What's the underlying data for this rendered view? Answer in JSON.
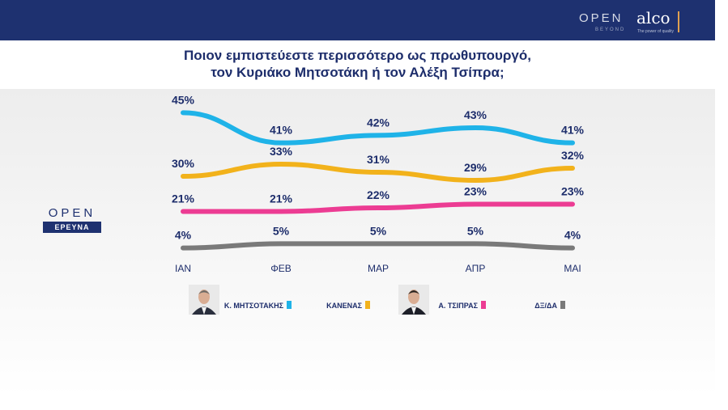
{
  "header": {
    "brand_open": "OPEN",
    "brand_open_sub": "BEYOND",
    "brand_alco": "alco",
    "brand_alco_sub": "The power of quality"
  },
  "watermark": {
    "open": "OPEN",
    "ereuna": "ΕΡΕΥΝΑ"
  },
  "chart_data": {
    "type": "line",
    "title": "Ποιον εμπιστεύεστε περισσότερο ως πρωθυπουργό,",
    "subtitle": "τον Κυριάκο Μητσοτάκη ή τον Αλέξη Τσίπρα;",
    "x": [
      "ΙΑΝ",
      "ΦΕΒ",
      "ΜΑΡ",
      "ΑΠΡ",
      "ΜΑΙ"
    ],
    "ylim": [
      0,
      50
    ],
    "grid": false,
    "legend_position": "bottom",
    "series": [
      {
        "name": "Κ. ΜΗΤΣΟΤΑΚΗΣ",
        "color": "#1fb3e8",
        "values": [
          45,
          41,
          42,
          43,
          41
        ],
        "labels": [
          "45%",
          "41%",
          "42%",
          "43%",
          "41%"
        ],
        "avatar": "mitsotakis-photo"
      },
      {
        "name": "ΚΑΝΕΝΑΣ",
        "color": "#f2b21b",
        "values": [
          30,
          33,
          31,
          29,
          32
        ],
        "labels": [
          "30%",
          "33%",
          "31%",
          "29%",
          "32%"
        ]
      },
      {
        "name": "Α. ΤΣΙΠΡΑΣ",
        "color": "#ec3c93",
        "values": [
          21,
          21,
          22,
          23,
          23
        ],
        "labels": [
          "21%",
          "21%",
          "22%",
          "23%",
          "23%"
        ],
        "avatar": "tsipras-photo"
      },
      {
        "name": "ΔΞ/ΔΑ",
        "color": "#7a7a7a",
        "values": [
          4,
          5,
          5,
          5,
          4
        ],
        "labels": [
          "4%",
          "5%",
          "5%",
          "5%",
          "4%"
        ]
      }
    ]
  }
}
